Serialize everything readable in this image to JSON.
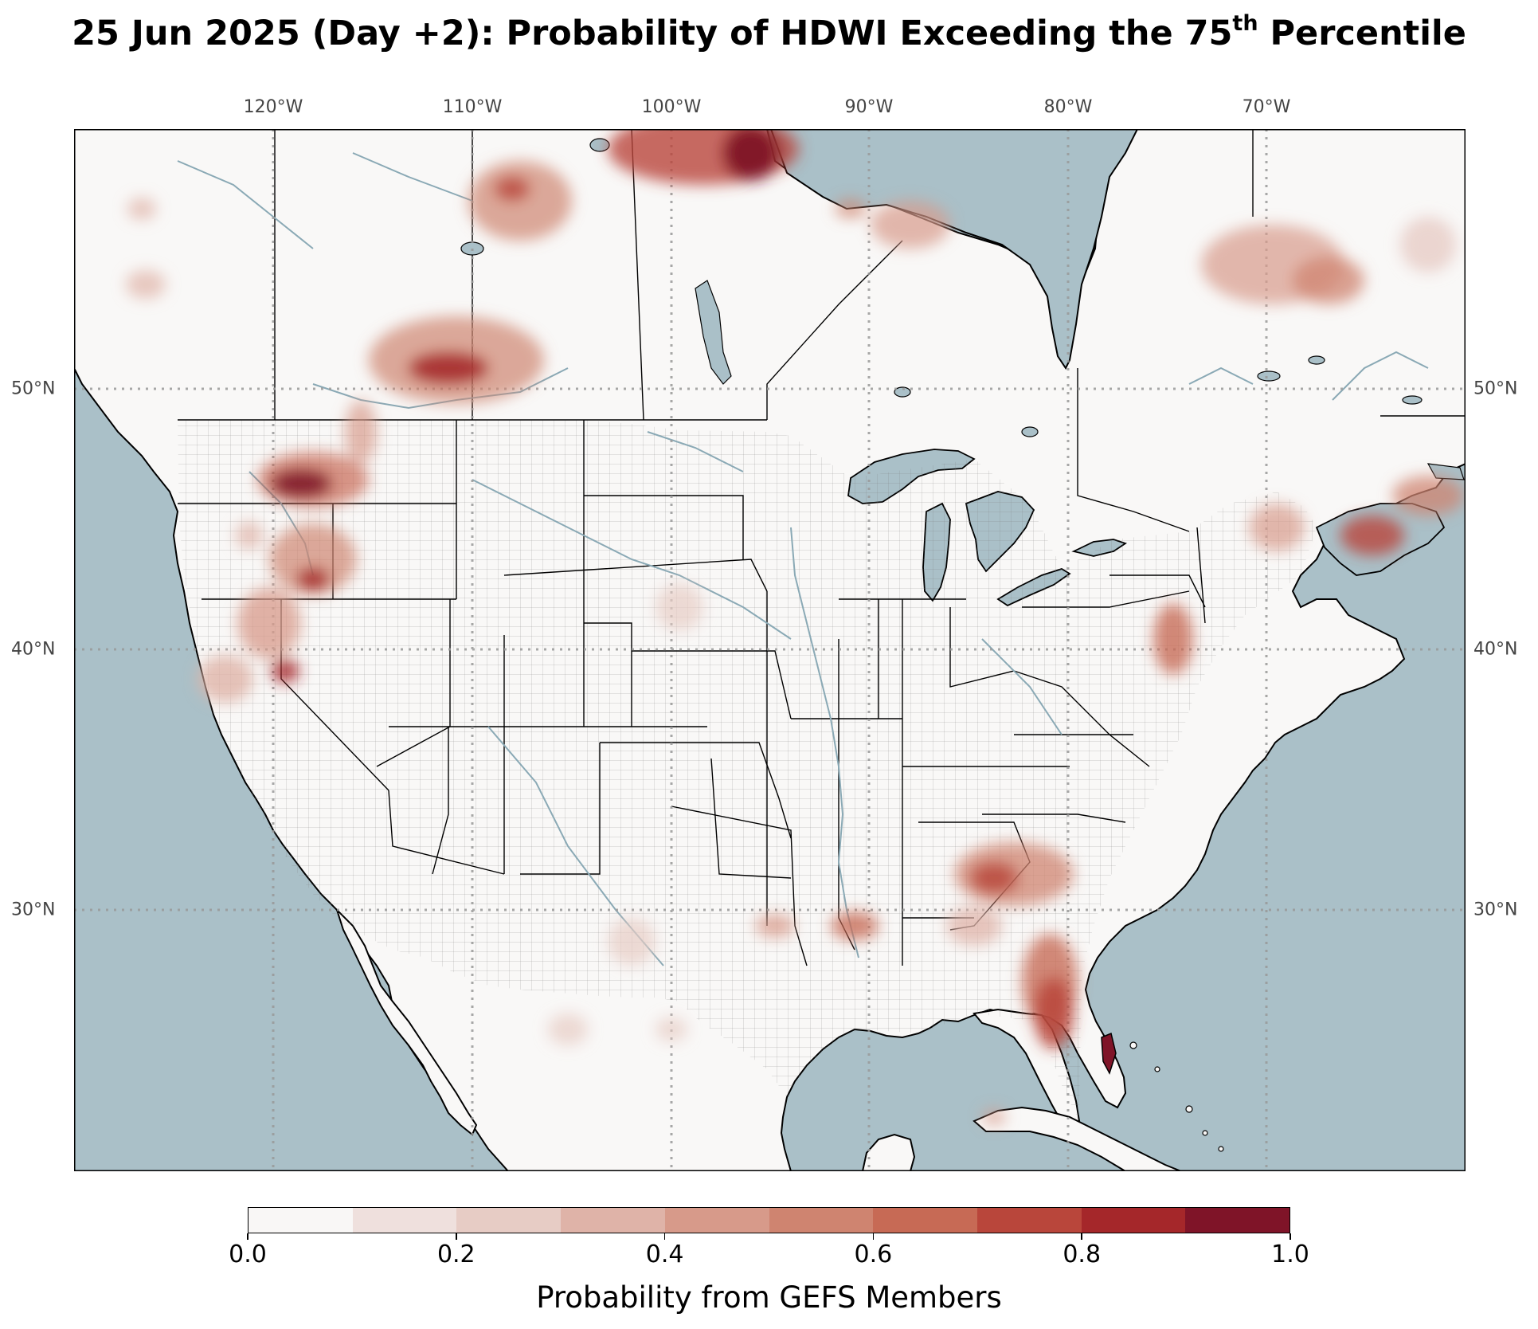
{
  "title": {
    "prefix": "25 Jun 2025 (Day +2): Probability of HDWI Exceeding the 75",
    "superscript": "th",
    "suffix": " Percentile"
  },
  "map": {
    "type": "choropleth-contour",
    "projection": "PlateCarree",
    "extent": {
      "lon_min": -130,
      "lon_max": -60,
      "lat_min": 20,
      "lat_max": 60
    },
    "colors": {
      "ocean": "#aac0c8",
      "land": "#f9f8f7",
      "border": "#000000",
      "county": "#555555",
      "river": "#8aa9b5",
      "grid": "#999999"
    },
    "lon_gridlines": [
      "120°W",
      "110°W",
      "100°W",
      "90°W",
      "80°W",
      "70°W"
    ],
    "lat_gridlines": [
      "50°N",
      "40°N",
      "30°N"
    ],
    "hotspots_description_regions": [
      "Eastern Oregon / Blue Mountains",
      "Northern California / Nevada border",
      "Southern Saskatchewan / Alberta",
      "Northern Manitoba / Hudson Bay coast",
      "Quebec interior",
      "Georgia / Florida peninsula",
      "Louisiana / Texas Gulf coast",
      "New Jersey / Delaware",
      "Nova Scotia",
      "Andros Island, Bahamas"
    ]
  },
  "colorbar": {
    "label": "Probability from GEFS Members",
    "ticks": [
      "0.0",
      "0.2",
      "0.4",
      "0.6",
      "0.8",
      "1.0"
    ],
    "bins": [
      0.0,
      0.1,
      0.2,
      0.3,
      0.4,
      0.5,
      0.6,
      0.7,
      0.8,
      0.9,
      1.0
    ],
    "colors": [
      "#f9f7f6",
      "#efe0dd",
      "#e7ccc5",
      "#dfb3a8",
      "#d79a8a",
      "#cf8470",
      "#c76a55",
      "#b9463b",
      "#a5272a",
      "#7f1428"
    ]
  }
}
